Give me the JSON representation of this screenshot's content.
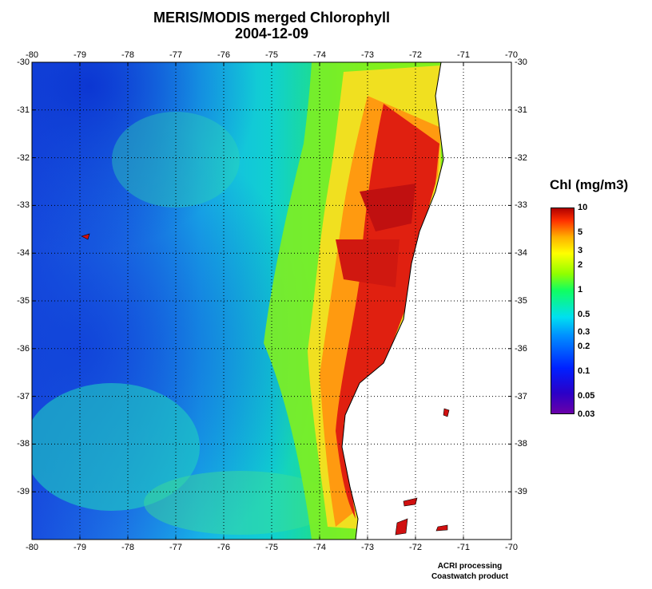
{
  "title": {
    "line1": "MERIS/MODIS merged Chlorophyll",
    "line2": "2004-12-09"
  },
  "axes": {
    "lon_ticks": [
      "-80",
      "-79",
      "-78",
      "-77",
      "-76",
      "-75",
      "-74",
      "-73",
      "-72",
      "-71",
      "-70"
    ],
    "lat_ticks": [
      "-30",
      "-31",
      "-32",
      "-33",
      "-34",
      "-35",
      "-36",
      "-37",
      "-38",
      "-39"
    ],
    "lon_range": [
      -80,
      -70
    ],
    "lat_range": [
      -40,
      -30
    ],
    "grid": "dotted"
  },
  "colorbar": {
    "title": "Chl (mg/m3)",
    "labels": [
      "10",
      "5",
      "3",
      "2",
      "1",
      "0.5",
      "0.3",
      "0.2",
      "0.1",
      "0.05",
      "0.03"
    ],
    "scale": "log"
  },
  "footer": {
    "line1": "ACRI processing",
    "line2": "Coastwatch product"
  },
  "colors": {
    "land": "#ffffff",
    "open_ocean": "#3aa0e8",
    "coastal_bloom": "#cc1010"
  }
}
